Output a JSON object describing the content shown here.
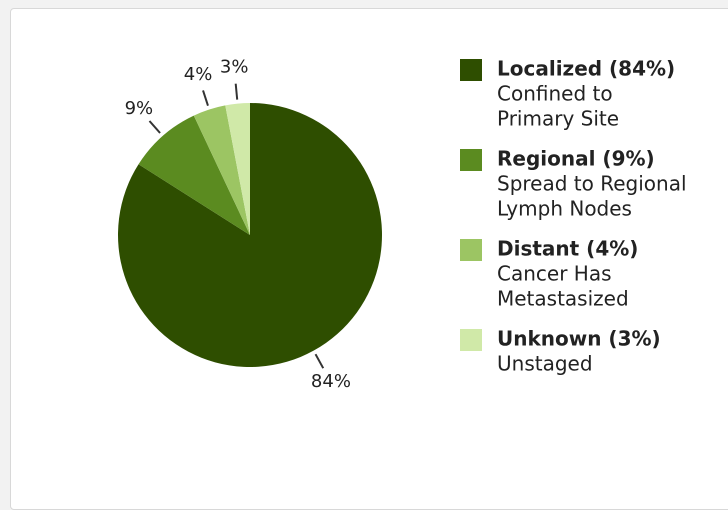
{
  "chart_data": {
    "type": "pie",
    "categories": [
      "Localized (84%)",
      "Regional (9%)",
      "Distant (4%)",
      "Unknown (3%)"
    ],
    "descriptions": [
      [
        "Confined to",
        "Primary Site"
      ],
      [
        "Spread to Regional",
        "Lymph Nodes"
      ],
      [
        "Cancer Has",
        "Metastasized"
      ],
      [
        "Unstaged"
      ]
    ],
    "values": [
      84,
      9,
      4,
      3
    ],
    "value_labels": [
      "84%",
      "9%",
      "4%",
      "3%"
    ],
    "colors": [
      "#2e4e00",
      "#5b8b20",
      "#9cc563",
      "#d0e9a8"
    ]
  }
}
